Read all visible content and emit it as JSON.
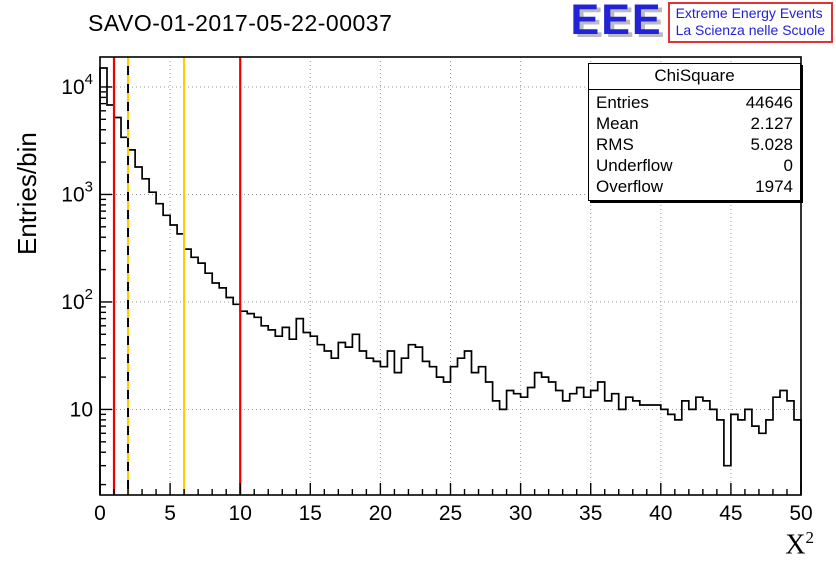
{
  "title": "SAVO-01-2017-05-22-00037",
  "logo": {
    "acronym": "EEE",
    "line1": "Extreme Energy Events",
    "line2": "La Scienza nelle Scuole",
    "blue": "#2222d6",
    "border_color": "#e03333"
  },
  "stats": {
    "title": "ChiSquare",
    "rows": [
      {
        "label": "Entries",
        "value": "44646"
      },
      {
        "label": "Mean",
        "value": "2.127"
      },
      {
        "label": "RMS",
        "value": "5.028"
      },
      {
        "label": "Underflow",
        "value": "0"
      },
      {
        "label": "Overflow",
        "value": "1974"
      }
    ]
  },
  "axes": {
    "y_label": "Entries/bin",
    "x_label": "X",
    "x_label_exp": "2",
    "x_ticks": [
      0,
      5,
      10,
      15,
      20,
      25,
      30,
      35,
      40,
      45,
      50
    ],
    "y_decades": [
      1,
      2,
      3,
      4
    ],
    "grid_color": "#999999"
  },
  "chart_data": {
    "type": "bar",
    "subtype": "histogram-step-log-y",
    "title": "SAVO-01-2017-05-22-00037",
    "xlabel": "X^2",
    "ylabel": "Entries/bin",
    "xlim": [
      0,
      50
    ],
    "ylim_log": [
      1.6,
      19000
    ],
    "grid": true,
    "legend": false,
    "line_color": "#000000",
    "bin_start": 0,
    "bin_width": 0.5,
    "counts": [
      15000,
      6800,
      5200,
      3400,
      2600,
      1800,
      1400,
      1050,
      820,
      640,
      520,
      430,
      310,
      260,
      230,
      185,
      150,
      135,
      110,
      95,
      82,
      78,
      72,
      60,
      55,
      48,
      58,
      45,
      70,
      52,
      48,
      40,
      35,
      30,
      42,
      38,
      50,
      35,
      30,
      28,
      25,
      35,
      22,
      30,
      40,
      38,
      28,
      25,
      20,
      18,
      25,
      30,
      35,
      22,
      25,
      18,
      12,
      10,
      15,
      14,
      13,
      16,
      22,
      20,
      18,
      15,
      12,
      14,
      16,
      13,
      15,
      18,
      12,
      14,
      10,
      13,
      12,
      11,
      11,
      11,
      10,
      9,
      8,
      12,
      10,
      13,
      12,
      10,
      8,
      3,
      9,
      8,
      10,
      7,
      6,
      8,
      13,
      15,
      12,
      8
    ],
    "vlines": [
      {
        "x": 1,
        "color": "#ee0000",
        "style": "solid"
      },
      {
        "x": 2,
        "color": "#ffcc00",
        "style": "dashed"
      },
      {
        "x": 6,
        "color": "#ffcc00",
        "style": "solid"
      },
      {
        "x": 10,
        "color": "#ee0000",
        "style": "solid"
      }
    ]
  }
}
